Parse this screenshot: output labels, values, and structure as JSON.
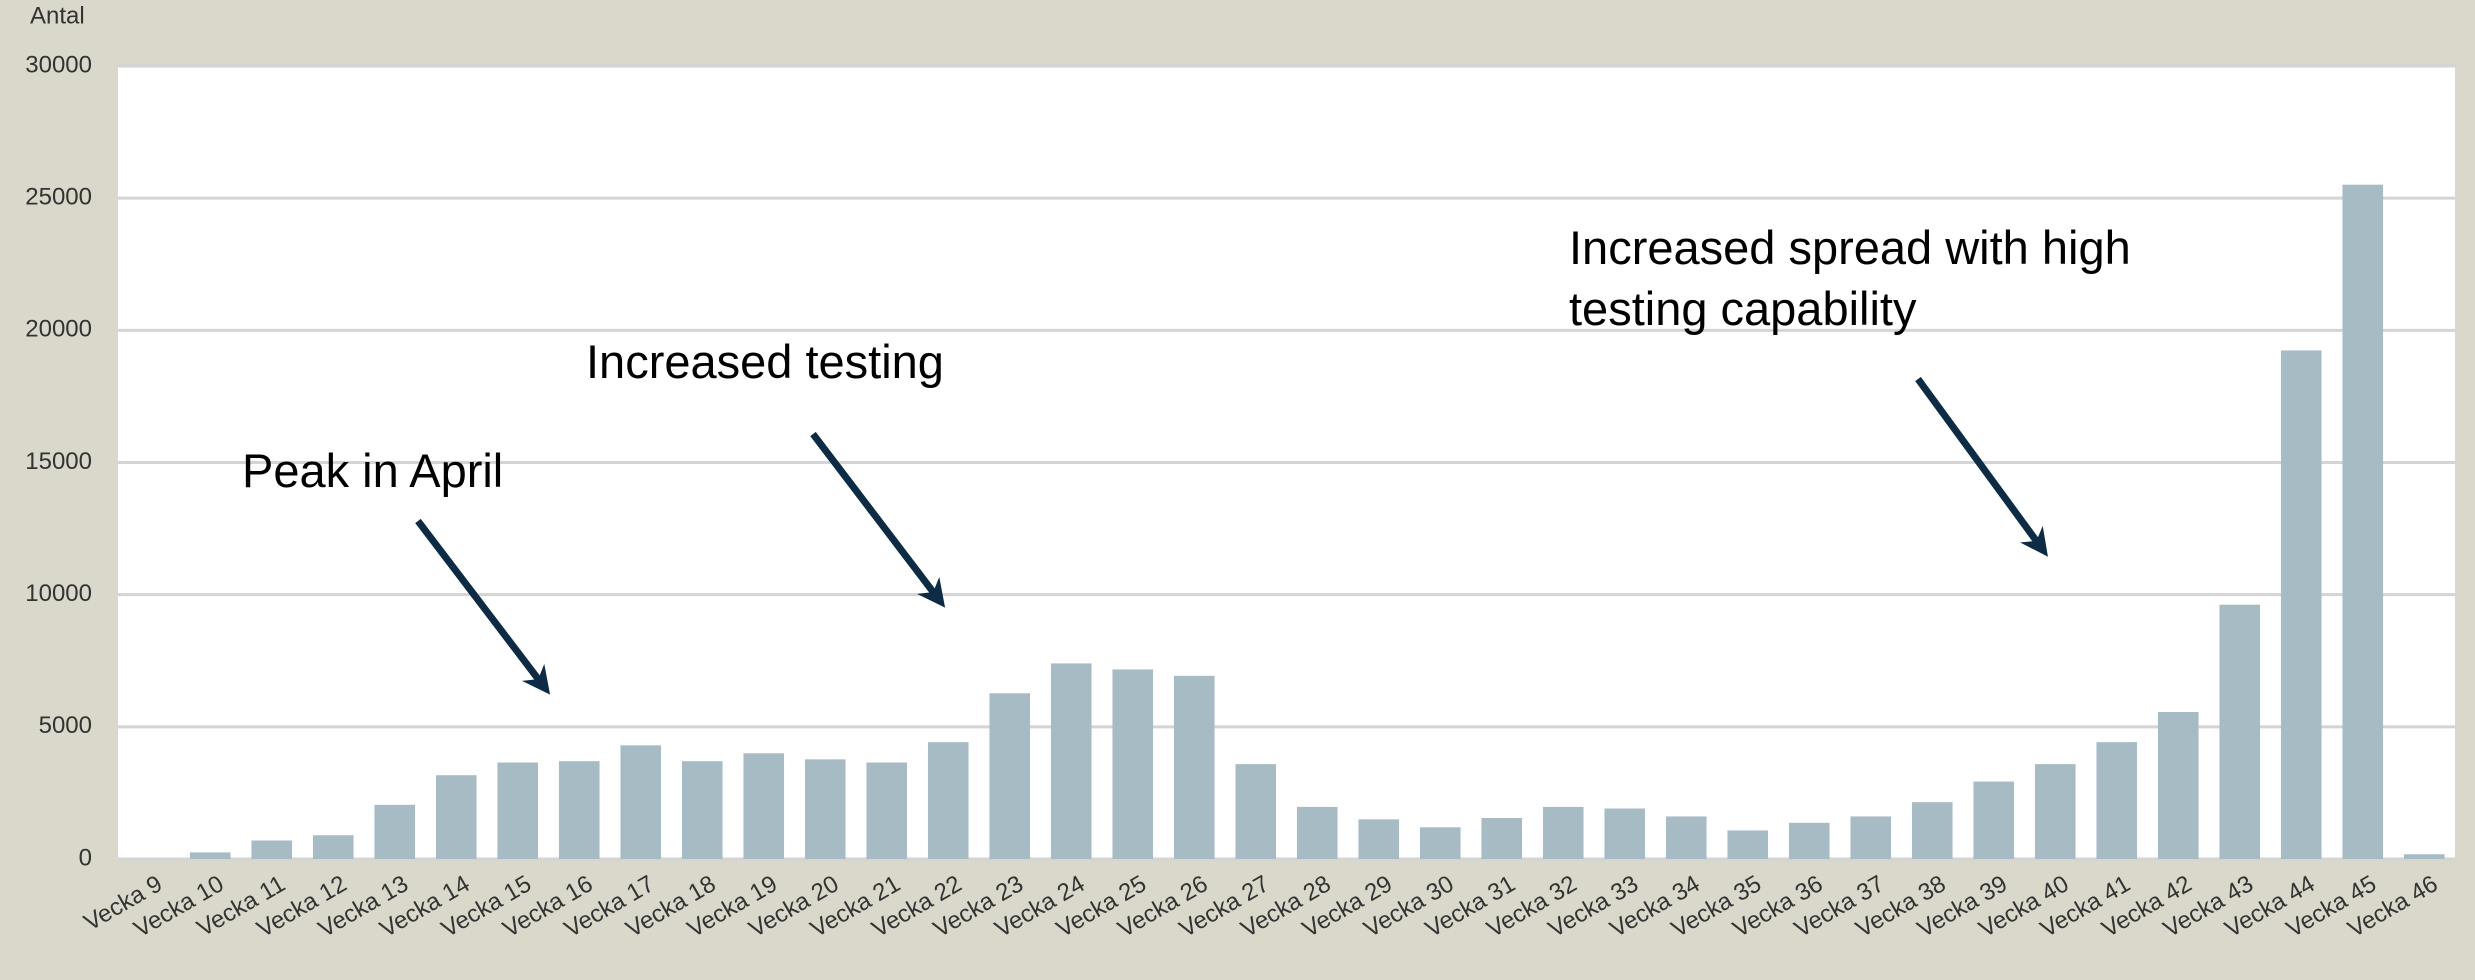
{
  "chart_data": {
    "type": "bar",
    "y_label": "Antal",
    "categories": [
      "Vecka 9",
      "Vecka 10",
      "Vecka 11",
      "Vecka 12",
      "Vecka 13",
      "Vecka 14",
      "Vecka 15",
      "Vecka 16",
      "Vecka 17",
      "Vecka 18",
      "Vecka 19",
      "Vecka 20",
      "Vecka 21",
      "Vecka 22",
      "Vecka 23",
      "Vecka 24",
      "Vecka 25",
      "Vecka 26",
      "Vecka 27",
      "Vecka 28",
      "Vecka 29",
      "Vecka 30",
      "Vecka 31",
      "Vecka 32",
      "Vecka 33",
      "Vecka 34",
      "Vecka 35",
      "Vecka 36",
      "Vecka 37",
      "Vecka 38",
      "Vecka 39",
      "Vecka 40",
      "Vecka 41",
      "Vecka 42",
      "Vecka 43",
      "Vecka 44",
      "Vecka 45",
      "Vecka 46"
    ],
    "values": [
      0,
      250,
      700,
      900,
      2050,
      3170,
      3650,
      3700,
      4300,
      3700,
      4000,
      3770,
      3650,
      4420,
      6270,
      7400,
      7170,
      6930,
      3590,
      1970,
      1500,
      1200,
      1550,
      1970,
      1910,
      1610,
      1080,
      1370,
      1610,
      2150,
      2930,
      3590,
      4420,
      5560,
      9620,
      19240,
      25510,
      180
    ],
    "color": "#a7bbc5",
    "ylim": [
      0,
      30000
    ],
    "yticks": [
      0,
      5000,
      10000,
      15000,
      20000,
      25000,
      30000
    ],
    "grid": true,
    "annotations": [
      {
        "lines": [
          "Peak in April"
        ]
      },
      {
        "lines": [
          "Increased testing"
        ]
      },
      {
        "lines": [
          "Increased spread with high",
          "testing capability"
        ]
      }
    ]
  }
}
